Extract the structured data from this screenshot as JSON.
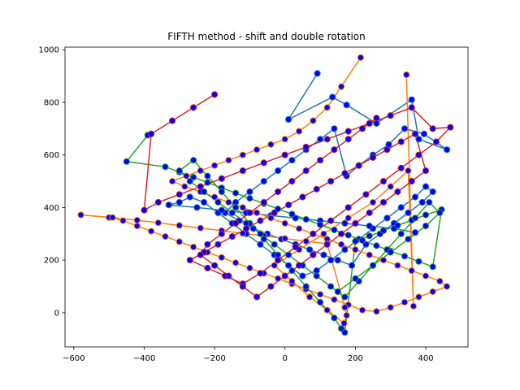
{
  "chart_data": {
    "type": "scatter",
    "title": "FIFTH method - shift and double rotation",
    "xlabel": "",
    "ylabel": "",
    "xlim": [
      -625,
      520
    ],
    "ylim": [
      -130,
      1010
    ],
    "x_ticks": [
      -600,
      -400,
      -200,
      0,
      200,
      400
    ],
    "y_ticks": [
      0,
      200,
      400,
      600,
      800,
      1000
    ],
    "x_tick_labels": [
      "−600",
      "−400",
      "−200",
      "0",
      "200",
      "400"
    ],
    "y_tick_labels": [
      "0",
      "200",
      "400",
      "600",
      "800",
      "1000"
    ],
    "grid": false,
    "marker": {
      "face": "#0000ff",
      "edge_by_series": true
    },
    "series": [
      {
        "color": "#1f77b4",
        "x": [
          92,
          10,
          135,
          175,
          260,
          360,
          380,
          460,
          395,
          340,
          295,
          250,
          210,
          175,
          140,
          100,
          60,
          20,
          -20,
          -60,
          -100,
          -140,
          -170,
          -130,
          -90,
          -50,
          -10,
          30,
          70,
          110,
          150,
          190,
          230,
          270,
          310,
          350,
          390,
          420,
          400,
          370,
          330,
          290,
          250,
          210,
          170,
          130,
          90,
          50,
          10,
          -30,
          -70,
          -110,
          -150,
          -190,
          -230,
          -270,
          -300,
          -330,
          -250,
          -180,
          -110,
          -40,
          30,
          100,
          170,
          240,
          310,
          370
        ],
        "y": [
          910,
          735,
          820,
          790,
          720,
          810,
          660,
          620,
          680,
          700,
          640,
          600,
          560,
          520,
          700,
          660,
          620,
          580,
          540,
          500,
          460,
          420,
          380,
          350,
          320,
          300,
          280,
          260,
          240,
          220,
          200,
          180,
          260,
          300,
          340,
          380,
          420,
          460,
          480,
          440,
          400,
          360,
          320,
          280,
          240,
          200,
          160,
          140,
          180,
          220,
          260,
          300,
          340,
          380,
          420,
          440,
          420,
          410,
          400,
          390,
          380,
          370,
          360,
          350,
          340,
          330,
          320,
          305
        ]
      },
      {
        "color": "#ff7f0e",
        "x": [
          215,
          160,
          120,
          80,
          40,
          0,
          -40,
          -80,
          -120,
          -160,
          -200,
          -240,
          -280,
          -320,
          -285,
          -240,
          -200,
          -160,
          -120,
          -80,
          -40,
          0,
          40,
          80,
          120,
          160,
          200,
          240,
          280,
          320,
          360,
          400,
          440,
          460,
          420,
          380,
          340,
          300,
          260,
          220,
          180,
          140,
          100,
          60,
          20,
          -20,
          -60,
          -100,
          -140,
          -180,
          -220,
          -260,
          -300,
          -340,
          -380,
          -420,
          -460,
          -500,
          -580,
          -490,
          -420,
          -360,
          -300,
          -240,
          -180,
          -120,
          -60,
          0,
          60,
          120,
          170,
          175,
          168,
          120,
          70,
          20,
          -30,
          40,
          110,
          180,
          250,
          300,
          350,
          365,
          345
        ],
        "y": [
          970,
          860,
          780,
          730,
          690,
          660,
          640,
          620,
          600,
          580,
          560,
          540,
          520,
          500,
          480,
          460,
          440,
          420,
          400,
          380,
          360,
          340,
          320,
          300,
          280,
          260,
          240,
          220,
          200,
          180,
          160,
          140,
          120,
          100,
          80,
          60,
          40,
          20,
          5,
          10,
          30,
          50,
          70,
          90,
          110,
          130,
          150,
          170,
          190,
          210,
          230,
          250,
          270,
          290,
          310,
          330,
          350,
          362,
          372,
          362,
          352,
          342,
          332,
          322,
          312,
          302,
          292,
          282,
          272,
          262,
          20,
          -10,
          -40,
          10,
          60,
          120,
          180,
          240,
          300,
          360,
          420,
          480,
          540,
          25,
          905
        ]
      },
      {
        "color": "#2ca02c",
        "x": [
          -390,
          -450,
          -340,
          -300,
          -260,
          -220,
          -180,
          -140,
          -100,
          -60,
          -20,
          20,
          60,
          100,
          140,
          180,
          220,
          260,
          300,
          340,
          380,
          420,
          445,
          400,
          360,
          320,
          280,
          240,
          200,
          170,
          160,
          140,
          100,
          60,
          20,
          -20,
          -60,
          -100,
          -140,
          -180,
          -220,
          -260,
          -300,
          -270,
          -230,
          -190,
          -150,
          -110,
          -70,
          -30,
          10,
          50,
          90,
          130,
          170,
          210,
          250,
          290,
          330,
          370,
          410,
          440,
          400,
          350,
          300,
          250,
          200,
          150
        ],
        "y": [
          675,
          575,
          555,
          535,
          515,
          495,
          475,
          455,
          435,
          415,
          395,
          375,
          355,
          335,
          315,
          295,
          275,
          255,
          235,
          215,
          195,
          175,
          392,
          372,
          352,
          332,
          312,
          292,
          272,
          -75,
          -60,
          -20,
          40,
          100,
          160,
          220,
          280,
          340,
          400,
          460,
          520,
          580,
          540,
          500,
          460,
          420,
          380,
          340,
          300,
          260,
          220,
          180,
          140,
          100,
          60,
          120,
          180,
          240,
          300,
          360,
          420,
          380,
          330,
          280,
          230,
          180,
          130,
          80
        ]
      },
      {
        "color": "#d62728",
        "x": [
          -200,
          -260,
          -320,
          -380,
          -400,
          -360,
          -300,
          -240,
          -180,
          -120,
          -60,
          0,
          60,
          120,
          180,
          240,
          300,
          360,
          420,
          470,
          430,
          380,
          330,
          280,
          230,
          180,
          130,
          80,
          30,
          -20,
          -70,
          -120,
          -170,
          -220,
          -270,
          -230,
          -190,
          -150,
          -110,
          -70,
          -30,
          10,
          50,
          90,
          130,
          170,
          210,
          250,
          290,
          330,
          370,
          400,
          360,
          320,
          280,
          240,
          200,
          160,
          120,
          80,
          40,
          0,
          -40,
          -80,
          -120,
          -160,
          -200,
          -240,
          -220,
          -180,
          -140,
          -100,
          -60,
          -20,
          20,
          60,
          100,
          140,
          180,
          220,
          260
        ],
        "y": [
          830,
          780,
          730,
          680,
          390,
          420,
          450,
          480,
          510,
          540,
          570,
          600,
          630,
          660,
          690,
          720,
          750,
          780,
          700,
          705,
          650,
          600,
          550,
          500,
          450,
          400,
          350,
          300,
          250,
          200,
          150,
          110,
          140,
          170,
          200,
          230,
          260,
          290,
          320,
          350,
          380,
          410,
          440,
          470,
          500,
          530,
          560,
          590,
          620,
          650,
          680,
          540,
          500,
          460,
          420,
          380,
          340,
          300,
          260,
          220,
          180,
          140,
          100,
          60,
          100,
          140,
          180,
          220,
          260,
          300,
          340,
          380,
          420,
          460,
          500,
          540,
          580,
          620,
          660,
          700,
          740
        ]
      }
    ]
  }
}
